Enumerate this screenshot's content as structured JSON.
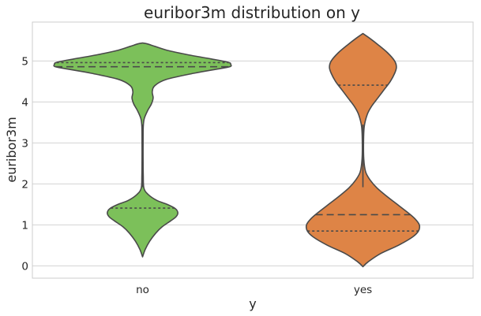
{
  "chart_data": {
    "type": "violin",
    "title": "euribor3m distribution on y",
    "xlabel": "y",
    "ylabel": "euribor3m",
    "categories": [
      "no",
      "yes"
    ],
    "colors": [
      "#7cc05a",
      "#de8446"
    ],
    "ylim": [
      -0.3,
      5.95
    ],
    "yticks": [
      0,
      1,
      2,
      3,
      4,
      5
    ],
    "grid": true,
    "inner": "quartile",
    "violins": [
      {
        "category": "no",
        "color": "#7cc05a",
        "min": 0.22,
        "max": 5.44,
        "q1": 1.41,
        "median": 4.86,
        "q3": 4.96,
        "profile": [
          [
            0.22,
            0.0
          ],
          [
            0.4,
            0.03
          ],
          [
            0.6,
            0.08
          ],
          [
            0.8,
            0.15
          ],
          [
            0.95,
            0.22
          ],
          [
            1.1,
            0.32
          ],
          [
            1.2,
            0.38
          ],
          [
            1.3,
            0.4
          ],
          [
            1.4,
            0.37
          ],
          [
            1.5,
            0.28
          ],
          [
            1.6,
            0.16
          ],
          [
            1.75,
            0.06
          ],
          [
            1.9,
            0.015
          ],
          [
            2.2,
            0.008
          ],
          [
            2.6,
            0.006
          ],
          [
            3.0,
            0.006
          ],
          [
            3.4,
            0.008
          ],
          [
            3.6,
            0.02
          ],
          [
            3.8,
            0.06
          ],
          [
            3.95,
            0.1
          ],
          [
            4.1,
            0.12
          ],
          [
            4.25,
            0.11
          ],
          [
            4.4,
            0.14
          ],
          [
            4.55,
            0.27
          ],
          [
            4.7,
            0.58
          ],
          [
            4.8,
            0.84
          ],
          [
            4.86,
            0.99
          ],
          [
            4.92,
            1.0
          ],
          [
            4.97,
            0.97
          ],
          [
            5.05,
            0.78
          ],
          [
            5.15,
            0.52
          ],
          [
            5.25,
            0.3
          ],
          [
            5.35,
            0.15
          ],
          [
            5.42,
            0.05
          ],
          [
            5.44,
            0.0
          ]
        ]
      },
      {
        "category": "yes",
        "color": "#de8446",
        "min": -0.02,
        "max": 5.67,
        "q1": 0.85,
        "median": 1.25,
        "q3": 4.41,
        "profile": [
          [
            -0.02,
            0.0
          ],
          [
            0.1,
            0.06
          ],
          [
            0.3,
            0.2
          ],
          [
            0.5,
            0.4
          ],
          [
            0.7,
            0.56
          ],
          [
            0.85,
            0.63
          ],
          [
            1.0,
            0.64
          ],
          [
            1.15,
            0.59
          ],
          [
            1.3,
            0.51
          ],
          [
            1.5,
            0.39
          ],
          [
            1.7,
            0.27
          ],
          [
            1.9,
            0.16
          ],
          [
            2.1,
            0.08
          ],
          [
            2.3,
            0.03
          ],
          [
            2.6,
            0.01
          ],
          [
            3.0,
            0.007
          ],
          [
            3.4,
            0.015
          ],
          [
            3.7,
            0.05
          ],
          [
            3.9,
            0.1
          ],
          [
            4.1,
            0.17
          ],
          [
            4.3,
            0.24
          ],
          [
            4.5,
            0.31
          ],
          [
            4.7,
            0.36
          ],
          [
            4.85,
            0.38
          ],
          [
            5.0,
            0.36
          ],
          [
            5.2,
            0.28
          ],
          [
            5.4,
            0.17
          ],
          [
            5.55,
            0.08
          ],
          [
            5.67,
            0.0
          ]
        ]
      }
    ]
  }
}
